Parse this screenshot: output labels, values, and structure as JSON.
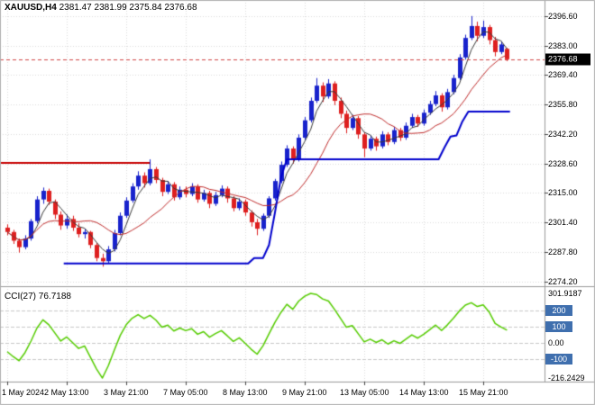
{
  "header": {
    "symbol_period": "XAUUSD,H4",
    "ohlc": "2381.47 2381.99 2375.84 2376.68"
  },
  "price_axis": {
    "labels": [
      "2396.60",
      "2383.00",
      "2369.40",
      "2355.80",
      "2342.20",
      "2328.60",
      "2315.00",
      "2301.40",
      "2287.80",
      "2274.20"
    ],
    "current": "2376.68"
  },
  "time_axis": {
    "labels": [
      "1 May 2024",
      "2 May 13:00",
      "3 May 21:00",
      "7 May 05:00",
      "8 May 13:00",
      "9 May 21:00",
      "13 May 05:00",
      "14 May 13:00",
      "15 May 21:00"
    ],
    "ticks": [
      0,
      10,
      20,
      30,
      40,
      50,
      60,
      70,
      80
    ]
  },
  "indicator": {
    "name": "CCI(27)",
    "value": "76.7188",
    "axis": {
      "max": "301.9187",
      "min": "-216.2429",
      "zero": "0.00",
      "badges": [
        "200",
        "100",
        "-100"
      ]
    }
  },
  "colors": {
    "background": "#FFFFFF",
    "grid": "#DBDBDB",
    "candle_up": "#1822CC",
    "candle_down": "#DE1F1F",
    "ma_fast": "#383838",
    "ma_slow": "#C02B2B",
    "step_line": "#0000CD",
    "hline": "#C80000",
    "current_line": "#D04545",
    "cci_line": "#55CC00",
    "level_line": "#C8C8C8",
    "badge_bg": "#3F6FAE",
    "current_badge_bg": "#000000",
    "separator": "#999999",
    "frame": "#B0B0B0",
    "tick": "#444444"
  },
  "chart_data": {
    "type": "candlestick",
    "symbol": "XAUUSD",
    "timeframe": "H4",
    "price_ylim": [
      2272,
      2404
    ],
    "cci_ylim": [
      -238,
      324
    ],
    "ma_fast_period": 4,
    "ma_slow_period": 12,
    "cci_levels": [
      200,
      100,
      0,
      -100
    ],
    "hline": {
      "price": 2329.0,
      "from_bar": -1.5,
      "to_bar": 24
    },
    "step_line": [
      [
        9.5,
        2282.5
      ],
      [
        40.5,
        2282.5
      ],
      [
        41.5,
        2285.0
      ],
      [
        43.0,
        2285.0
      ],
      [
        44.0,
        2291.0
      ],
      [
        45.0,
        2306.0
      ],
      [
        46.0,
        2322.0
      ],
      [
        47.0,
        2330.5
      ],
      [
        72.5,
        2330.5
      ],
      [
        73.5,
        2336.0
      ],
      [
        74.5,
        2341.0
      ],
      [
        75.5,
        2341.5
      ],
      [
        76.5,
        2348.0
      ],
      [
        77.5,
        2352.5
      ],
      [
        84.5,
        2352.5
      ]
    ],
    "candles": [
      [
        2299,
        2300.5,
        2295.5,
        2297
      ],
      [
        2297,
        2298,
        2291.5,
        2293
      ],
      [
        2293,
        2294,
        2287.5,
        2290
      ],
      [
        2290,
        2295.5,
        2289,
        2294
      ],
      [
        2294,
        2303,
        2293,
        2302
      ],
      [
        2302,
        2313.5,
        2301,
        2312
      ],
      [
        2312,
        2317.5,
        2310,
        2316
      ],
      [
        2316,
        2317,
        2309.5,
        2311
      ],
      [
        2311,
        2312,
        2303,
        2305
      ],
      [
        2305,
        2306.5,
        2298,
        2300
      ],
      [
        2300,
        2305,
        2298.5,
        2303
      ],
      [
        2303,
        2304.5,
        2297.5,
        2299
      ],
      [
        2299,
        2301,
        2294.5,
        2296
      ],
      [
        2296,
        2298.5,
        2294,
        2297
      ],
      [
        2297,
        2297.5,
        2289.5,
        2291
      ],
      [
        2291,
        2292,
        2283.5,
        2285
      ],
      [
        2285,
        2287,
        2281,
        2283.5
      ],
      [
        2283.5,
        2290.5,
        2282.5,
        2289
      ],
      [
        2289,
        2298,
        2288,
        2296.5
      ],
      [
        2296.5,
        2306,
        2295.5,
        2304.5
      ],
      [
        2304.5,
        2313,
        2303.5,
        2311.5
      ],
      [
        2311.5,
        2319.5,
        2310.5,
        2318
      ],
      [
        2318,
        2325,
        2316.5,
        2323
      ],
      [
        2323,
        2324.5,
        2317.5,
        2319.5
      ],
      [
        2319.5,
        2330.5,
        2318.5,
        2326
      ],
      [
        2326,
        2327,
        2319.5,
        2321
      ],
      [
        2321,
        2322,
        2313.5,
        2315.5
      ],
      [
        2315.5,
        2320.5,
        2314.5,
        2319
      ],
      [
        2319,
        2320,
        2311.5,
        2313
      ],
      [
        2313,
        2318,
        2312,
        2316.5
      ],
      [
        2316.5,
        2318,
        2313,
        2314.5
      ],
      [
        2314.5,
        2319.5,
        2313.5,
        2318
      ],
      [
        2318,
        2319,
        2310.5,
        2312
      ],
      [
        2312,
        2316.5,
        2311,
        2315
      ],
      [
        2315,
        2316,
        2308,
        2310
      ],
      [
        2310,
        2315.5,
        2309,
        2314
      ],
      [
        2314,
        2318.5,
        2313,
        2317
      ],
      [
        2317,
        2318,
        2310.5,
        2312.5
      ],
      [
        2312.5,
        2313.5,
        2306.5,
        2308
      ],
      [
        2308,
        2312.5,
        2307,
        2311
      ],
      [
        2311,
        2312,
        2304.5,
        2306
      ],
      [
        2306,
        2307,
        2299.5,
        2301.5
      ],
      [
        2301.5,
        2303,
        2295.5,
        2298.5
      ],
      [
        2298.5,
        2305.5,
        2297.5,
        2304.5
      ],
      [
        2304.5,
        2313.5,
        2303.5,
        2312.5
      ],
      [
        2312.5,
        2321.5,
        2311.5,
        2320.5
      ],
      [
        2320.5,
        2329.5,
        2319.5,
        2328
      ],
      [
        2328,
        2337,
        2327,
        2335.5
      ],
      [
        2335.5,
        2336.5,
        2328.5,
        2330.5
      ],
      [
        2330.5,
        2342,
        2329.5,
        2340.5
      ],
      [
        2340.5,
        2350,
        2339.5,
        2348.5
      ],
      [
        2348.5,
        2359,
        2347.5,
        2357.5
      ],
      [
        2357.5,
        2368,
        2356.5,
        2364.5
      ],
      [
        2364.5,
        2366,
        2357,
        2359.5
      ],
      [
        2359.5,
        2367.5,
        2358.5,
        2365.5
      ],
      [
        2365.5,
        2366.5,
        2355.5,
        2357.5
      ],
      [
        2357.5,
        2359,
        2349.5,
        2351.5
      ],
      [
        2351.5,
        2353,
        2342.5,
        2345
      ],
      [
        2345,
        2351,
        2344,
        2349.5
      ],
      [
        2349.5,
        2350.5,
        2340,
        2342
      ],
      [
        2342,
        2343,
        2331.5,
        2335.5
      ],
      [
        2335.5,
        2341.5,
        2334.5,
        2340
      ],
      [
        2340,
        2341,
        2334.5,
        2336.5
      ],
      [
        2336.5,
        2343.5,
        2335.5,
        2342
      ],
      [
        2342,
        2343,
        2337,
        2338.5
      ],
      [
        2338.5,
        2345.5,
        2337.5,
        2344
      ],
      [
        2344,
        2345,
        2339,
        2340.5
      ],
      [
        2340.5,
        2347.5,
        2339.5,
        2346
      ],
      [
        2346,
        2351.5,
        2345,
        2350
      ],
      [
        2350,
        2351,
        2345.5,
        2347
      ],
      [
        2347,
        2353.5,
        2346,
        2352
      ],
      [
        2352,
        2357.5,
        2351,
        2356
      ],
      [
        2356,
        2362,
        2355,
        2360
      ],
      [
        2360,
        2361,
        2352.5,
        2354.5
      ],
      [
        2354.5,
        2363,
        2353.5,
        2361.5
      ],
      [
        2361.5,
        2369.5,
        2360.5,
        2368
      ],
      [
        2368,
        2379,
        2367,
        2377.5
      ],
      [
        2377.5,
        2388,
        2376.5,
        2386.5
      ],
      [
        2386.5,
        2396.6,
        2385.5,
        2392
      ],
      [
        2392,
        2394,
        2385,
        2387.5
      ],
      [
        2387.5,
        2394.5,
        2386.5,
        2391.5
      ],
      [
        2391.5,
        2392.5,
        2383.5,
        2385.5
      ],
      [
        2385.5,
        2387,
        2378,
        2380
      ],
      [
        2380,
        2385,
        2379,
        2383.5
      ],
      [
        2381.47,
        2381.99,
        2375.84,
        2376.68
      ]
    ],
    "cci": [
      -55,
      -85,
      -110,
      -60,
      10,
      90,
      140,
      110,
      60,
      10,
      35,
      0,
      -35,
      -20,
      -90,
      -160,
      -216.2429,
      -140,
      -45,
      45,
      110,
      150,
      172,
      148,
      168,
      138,
      95,
      108,
      72,
      90,
      74,
      86,
      52,
      68,
      34,
      56,
      74,
      42,
      8,
      30,
      -4,
      -40,
      -70,
      -18,
      55,
      125,
      185,
      235,
      205,
      255,
      285,
      301.9187,
      295,
      268,
      255,
      205,
      150,
      95,
      105,
      55,
      5,
      22,
      2,
      18,
      -8,
      12,
      -4,
      22,
      48,
      28,
      52,
      80,
      108,
      75,
      110,
      150,
      195,
      230,
      245,
      222,
      232,
      188,
      118,
      96,
      76.7188
    ]
  }
}
